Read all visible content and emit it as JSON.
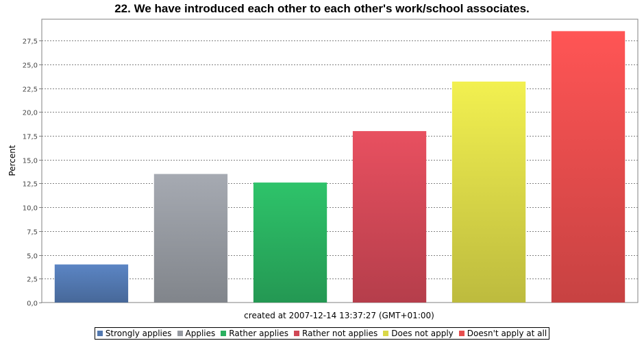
{
  "chart_data": {
    "type": "bar",
    "title": "22. We have introduced each other to each other's work/school associates.",
    "ylabel": "Percent",
    "xlabel": "",
    "ylim": [
      0,
      29.75
    ],
    "yticks": [
      "0,0",
      "2,5",
      "5,0",
      "7,5",
      "10,0",
      "12,5",
      "15,0",
      "17,5",
      "20,0",
      "22,5",
      "25,0",
      "27,5"
    ],
    "ytick_values": [
      0,
      2.5,
      5,
      7.5,
      10,
      12.5,
      15,
      17.5,
      20,
      22.5,
      25,
      27.5
    ],
    "grid": true,
    "legend_position": "bottom",
    "categories": [
      "Strongly applies",
      "Applies",
      "Rather applies",
      "Rather not applies",
      "Does not apply",
      "Doesn't apply at all"
    ],
    "values": [
      4.0,
      13.5,
      12.6,
      18.0,
      23.2,
      28.5
    ],
    "colors": [
      "#5b85c4",
      "#a6aab2",
      "#2ec36a",
      "#e85060",
      "#f2f050",
      "#ff5555"
    ],
    "annotation": "created at 2007-12-14 13:37:27 (GMT+01:00)"
  }
}
